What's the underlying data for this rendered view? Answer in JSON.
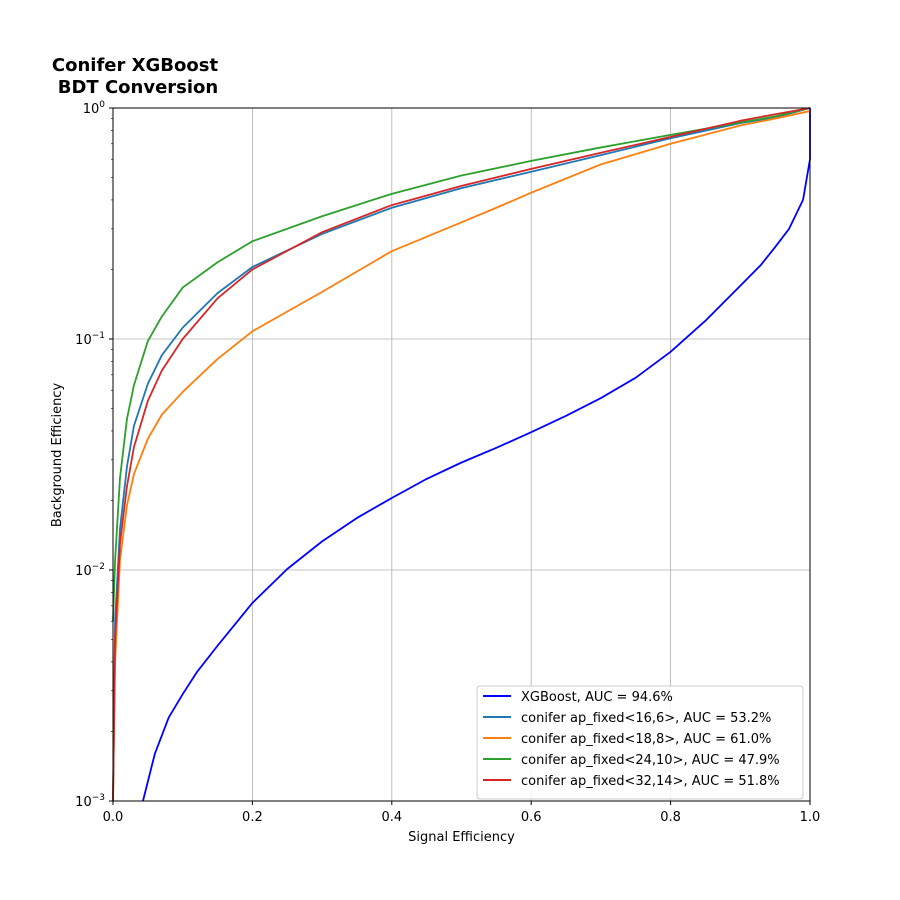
{
  "chart_data": {
    "type": "line",
    "title_lines": [
      "Conifer XGBoost",
      "BDT Conversion"
    ],
    "xlabel": "Signal Efficiency",
    "ylabel": "Background Efficiency",
    "xlim": [
      0.0,
      1.0
    ],
    "ylim": [
      0.001,
      1.0
    ],
    "yscale": "log",
    "grid": true,
    "legend_position": "lower-right",
    "x_ticks": [
      {
        "value": 0.0,
        "label": "0.0"
      },
      {
        "value": 0.2,
        "label": "0.2"
      },
      {
        "value": 0.4,
        "label": "0.4"
      },
      {
        "value": 0.6,
        "label": "0.6"
      },
      {
        "value": 0.8,
        "label": "0.8"
      },
      {
        "value": 1.0,
        "label": "1.0"
      }
    ],
    "y_ticks": [
      {
        "value": 0.001,
        "base": "10",
        "exp": "−3"
      },
      {
        "value": 0.01,
        "base": "10",
        "exp": "−2"
      },
      {
        "value": 0.1,
        "base": "10",
        "exp": "−1"
      },
      {
        "value": 1.0,
        "base": "10",
        "exp": "0"
      }
    ],
    "series": [
      {
        "name": "XGBoost, AUC = 94.6%",
        "color": "#0000ff",
        "points": [
          [
            0.043,
            0.001
          ],
          [
            0.06,
            0.0016
          ],
          [
            0.08,
            0.0023
          ],
          [
            0.1,
            0.0029
          ],
          [
            0.12,
            0.0036
          ],
          [
            0.15,
            0.0047
          ],
          [
            0.2,
            0.0072
          ],
          [
            0.25,
            0.0101
          ],
          [
            0.3,
            0.0133
          ],
          [
            0.35,
            0.0168
          ],
          [
            0.4,
            0.0205
          ],
          [
            0.45,
            0.0248
          ],
          [
            0.5,
            0.0292
          ],
          [
            0.55,
            0.0338
          ],
          [
            0.6,
            0.0395
          ],
          [
            0.65,
            0.0465
          ],
          [
            0.7,
            0.0555
          ],
          [
            0.75,
            0.068
          ],
          [
            0.8,
            0.088
          ],
          [
            0.85,
            0.12
          ],
          [
            0.9,
            0.17
          ],
          [
            0.93,
            0.21
          ],
          [
            0.95,
            0.25
          ],
          [
            0.97,
            0.3
          ],
          [
            0.99,
            0.4
          ],
          [
            1.0,
            0.6
          ],
          [
            1.0,
            1.0
          ]
        ]
      },
      {
        "name": "conifer ap_fixed<16,6>, AUC = 53.2%",
        "color": "#1f77b4",
        "points": [
          [
            0.0,
            0.001
          ],
          [
            0.003,
            0.006
          ],
          [
            0.01,
            0.015
          ],
          [
            0.02,
            0.028
          ],
          [
            0.03,
            0.042
          ],
          [
            0.05,
            0.064
          ],
          [
            0.07,
            0.085
          ],
          [
            0.1,
            0.112
          ],
          [
            0.15,
            0.158
          ],
          [
            0.2,
            0.205
          ],
          [
            0.3,
            0.285
          ],
          [
            0.4,
            0.37
          ],
          [
            0.5,
            0.45
          ],
          [
            0.6,
            0.53
          ],
          [
            0.7,
            0.625
          ],
          [
            0.8,
            0.74
          ],
          [
            0.9,
            0.86
          ],
          [
            0.95,
            0.91
          ],
          [
            1.0,
            1.0
          ]
        ]
      },
      {
        "name": "conifer ap_fixed<18,8>, AUC = 61.0%",
        "color": "#ff7f0e",
        "points": [
          [
            0.0,
            0.001
          ],
          [
            0.003,
            0.004
          ],
          [
            0.01,
            0.011
          ],
          [
            0.02,
            0.019
          ],
          [
            0.03,
            0.026
          ],
          [
            0.05,
            0.037
          ],
          [
            0.07,
            0.047
          ],
          [
            0.1,
            0.059
          ],
          [
            0.15,
            0.082
          ],
          [
            0.2,
            0.108
          ],
          [
            0.3,
            0.16
          ],
          [
            0.4,
            0.24
          ],
          [
            0.5,
            0.32
          ],
          [
            0.55,
            0.37
          ],
          [
            0.6,
            0.43
          ],
          [
            0.7,
            0.57
          ],
          [
            0.8,
            0.7
          ],
          [
            0.9,
            0.84
          ],
          [
            0.95,
            0.9
          ],
          [
            1.0,
            0.97
          ]
        ]
      },
      {
        "name": "conifer ap_fixed<24,10>, AUC = 47.9%",
        "color": "#2ca02c",
        "points": [
          [
            0.0,
            0.006
          ],
          [
            0.003,
            0.011
          ],
          [
            0.01,
            0.025
          ],
          [
            0.02,
            0.045
          ],
          [
            0.03,
            0.063
          ],
          [
            0.05,
            0.098
          ],
          [
            0.07,
            0.125
          ],
          [
            0.1,
            0.167
          ],
          [
            0.15,
            0.215
          ],
          [
            0.2,
            0.265
          ],
          [
            0.3,
            0.34
          ],
          [
            0.4,
            0.425
          ],
          [
            0.5,
            0.51
          ],
          [
            0.6,
            0.59
          ],
          [
            0.7,
            0.675
          ],
          [
            0.8,
            0.765
          ],
          [
            0.9,
            0.865
          ],
          [
            0.95,
            0.92
          ],
          [
            1.0,
            1.0
          ]
        ]
      },
      {
        "name": "conifer ap_fixed<32,14>, AUC = 51.8%",
        "color": "#d62728",
        "points": [
          [
            0.0,
            0.001
          ],
          [
            0.003,
            0.005
          ],
          [
            0.01,
            0.013
          ],
          [
            0.02,
            0.023
          ],
          [
            0.03,
            0.034
          ],
          [
            0.05,
            0.054
          ],
          [
            0.07,
            0.073
          ],
          [
            0.1,
            0.1
          ],
          [
            0.15,
            0.15
          ],
          [
            0.2,
            0.2
          ],
          [
            0.3,
            0.29
          ],
          [
            0.4,
            0.38
          ],
          [
            0.5,
            0.46
          ],
          [
            0.6,
            0.545
          ],
          [
            0.7,
            0.64
          ],
          [
            0.8,
            0.75
          ],
          [
            0.9,
            0.88
          ],
          [
            0.95,
            0.94
          ],
          [
            1.0,
            1.0
          ]
        ]
      }
    ]
  }
}
